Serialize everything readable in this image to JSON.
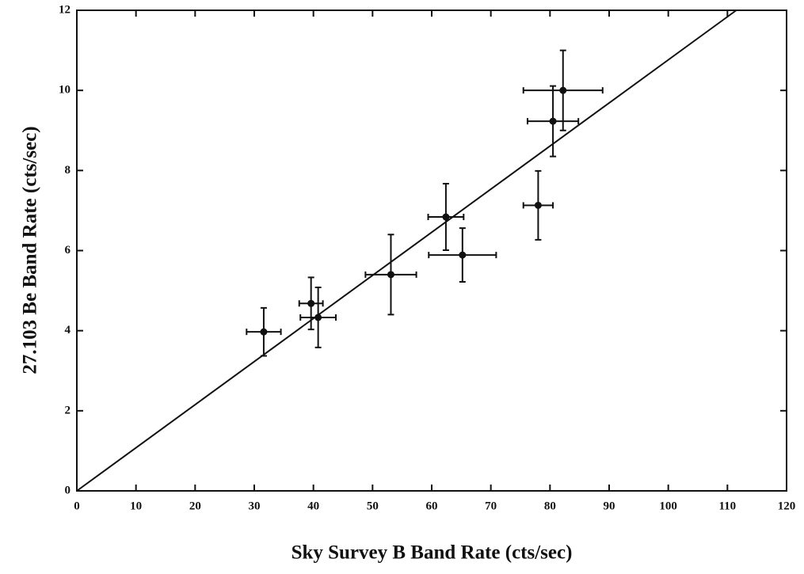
{
  "chart_data": {
    "type": "scatter",
    "x_label": "Sky Survey B Band Rate (cts/sec)",
    "y_label": "27.103 Be Band Rate (cts/sec)",
    "x": [
      31.6,
      39.6,
      40.8,
      53.1,
      62.4,
      65.2,
      78.0,
      80.5,
      82.2
    ],
    "values": [
      3.97,
      4.68,
      4.33,
      5.4,
      6.84,
      5.89,
      7.13,
      9.23,
      10.0
    ],
    "x_errors": [
      2.9,
      2.0,
      3.0,
      4.3,
      3.0,
      5.7,
      2.5,
      4.3,
      6.7
    ],
    "y_errors": [
      0.6,
      0.65,
      0.75,
      1.0,
      0.83,
      0.67,
      0.86,
      0.88,
      1.0
    ],
    "color": "#111111",
    "fit_line": {
      "x": [
        0,
        111.5
      ],
      "y": [
        0,
        12
      ]
    },
    "xlim": [
      0,
      120
    ],
    "ylim": [
      0,
      12
    ],
    "xticks": [
      0,
      10,
      20,
      30,
      40,
      50,
      60,
      70,
      80,
      90,
      100,
      110,
      120
    ],
    "yticks": [
      0,
      2,
      4,
      6,
      8,
      10,
      12
    ],
    "grid": false
  }
}
